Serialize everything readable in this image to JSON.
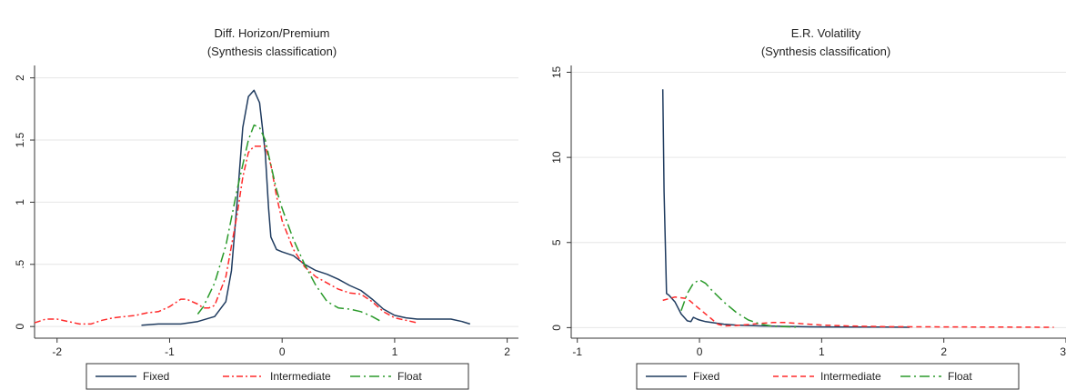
{
  "chart_data": [
    {
      "type": "line",
      "title": "Diff. Horizon/Premium",
      "subtitle": "(Synthesis classification)",
      "xlabel": "",
      "ylabel": "",
      "xlim": [
        -2.2,
        2.1
      ],
      "ylim": [
        -0.05,
        2.1
      ],
      "xticks": [
        -2,
        -1,
        0,
        1,
        2
      ],
      "xtick_labels": [
        "-2",
        "-1",
        "0",
        "1",
        "2"
      ],
      "yticks": [
        0,
        0.5,
        1,
        1.5,
        2
      ],
      "ytick_labels": [
        "0",
        ".5",
        "1",
        "1.5",
        "2"
      ],
      "grid": true,
      "legend_position": "bottom",
      "series": [
        {
          "name": "Fixed",
          "color": "#1f3b5f",
          "dash": "solid",
          "x": [
            -1.25,
            -1.1,
            -0.9,
            -0.75,
            -0.6,
            -0.5,
            -0.45,
            -0.4,
            -0.35,
            -0.3,
            -0.25,
            -0.2,
            -0.15,
            -0.12,
            -0.1,
            -0.05,
            0.0,
            0.1,
            0.2,
            0.3,
            0.4,
            0.5,
            0.6,
            0.7,
            0.8,
            0.9,
            1.0,
            1.1,
            1.2,
            1.3,
            1.4,
            1.5,
            1.6,
            1.67
          ],
          "y": [
            0.01,
            0.02,
            0.02,
            0.04,
            0.08,
            0.2,
            0.45,
            1.0,
            1.6,
            1.85,
            1.9,
            1.8,
            1.4,
            0.95,
            0.72,
            0.62,
            0.6,
            0.57,
            0.5,
            0.45,
            0.42,
            0.38,
            0.33,
            0.29,
            0.22,
            0.14,
            0.09,
            0.07,
            0.06,
            0.06,
            0.06,
            0.06,
            0.04,
            0.02
          ]
        },
        {
          "name": "Intermediate",
          "color": "#ff2a2a",
          "dash": "dash-dot",
          "x": [
            -2.2,
            -2.1,
            -2.0,
            -1.9,
            -1.8,
            -1.7,
            -1.6,
            -1.5,
            -1.4,
            -1.3,
            -1.2,
            -1.1,
            -1.0,
            -0.95,
            -0.9,
            -0.85,
            -0.8,
            -0.75,
            -0.7,
            -0.65,
            -0.6,
            -0.5,
            -0.4,
            -0.35,
            -0.3,
            -0.25,
            -0.2,
            -0.15,
            -0.1,
            -0.05,
            0.0,
            0.1,
            0.2,
            0.3,
            0.4,
            0.5,
            0.6,
            0.7,
            0.8,
            0.9,
            1.0,
            1.1,
            1.2
          ],
          "y": [
            0.03,
            0.06,
            0.06,
            0.04,
            0.02,
            0.02,
            0.05,
            0.07,
            0.08,
            0.09,
            0.11,
            0.12,
            0.16,
            0.19,
            0.22,
            0.22,
            0.2,
            0.18,
            0.15,
            0.15,
            0.17,
            0.4,
            0.9,
            1.2,
            1.4,
            1.45,
            1.45,
            1.45,
            1.3,
            1.05,
            0.85,
            0.62,
            0.48,
            0.4,
            0.35,
            0.3,
            0.27,
            0.26,
            0.2,
            0.12,
            0.07,
            0.05,
            0.03
          ]
        },
        {
          "name": "Float",
          "color": "#2a9a2a",
          "dash": "long-dash-dot",
          "x": [
            -0.75,
            -0.7,
            -0.6,
            -0.5,
            -0.4,
            -0.3,
            -0.25,
            -0.2,
            -0.15,
            -0.1,
            -0.05,
            0.0,
            0.1,
            0.2,
            0.3,
            0.4,
            0.5,
            0.6,
            0.7,
            0.8,
            0.88
          ],
          "y": [
            0.1,
            0.16,
            0.35,
            0.65,
            1.1,
            1.5,
            1.62,
            1.6,
            1.5,
            1.3,
            1.1,
            0.95,
            0.7,
            0.5,
            0.33,
            0.2,
            0.15,
            0.14,
            0.12,
            0.08,
            0.04
          ]
        }
      ]
    },
    {
      "type": "line",
      "title": "E.R. Volatility",
      "subtitle": "(Synthesis classification)",
      "xlabel": "",
      "ylabel": "",
      "xlim": [
        -1.05,
        3.0
      ],
      "ylim": [
        -0.3,
        15.4
      ],
      "xticks": [
        -1,
        0,
        1,
        2,
        3
      ],
      "xtick_labels": [
        "-1",
        "0",
        "1",
        "2",
        "3"
      ],
      "yticks": [
        0,
        5,
        10,
        15
      ],
      "ytick_labels": [
        "0",
        "5",
        "10",
        "15"
      ],
      "grid": true,
      "legend_position": "bottom",
      "series": [
        {
          "name": "Fixed",
          "color": "#1f3b5f",
          "dash": "solid",
          "x": [
            -0.3,
            -0.29,
            -0.27,
            -0.25,
            -0.2,
            -0.15,
            -0.1,
            -0.07,
            -0.05,
            -0.02,
            0.0,
            0.05,
            0.1,
            0.2,
            0.3,
            0.5,
            0.8,
            1.0,
            1.3,
            1.5,
            1.72
          ],
          "y": [
            14.0,
            8.0,
            2.0,
            1.9,
            1.5,
            0.8,
            0.4,
            0.35,
            0.6,
            0.5,
            0.45,
            0.35,
            0.3,
            0.2,
            0.15,
            0.1,
            0.06,
            0.04,
            0.03,
            0.03,
            0.02
          ]
        },
        {
          "name": "Intermediate",
          "color": "#ff2a2a",
          "dash": "dashed",
          "x": [
            -0.3,
            -0.2,
            -0.1,
            0.0,
            0.1,
            0.15,
            0.2,
            0.3,
            0.4,
            0.5,
            0.6,
            0.7,
            0.8,
            1.0,
            1.2,
            1.5,
            2.0,
            2.5,
            2.9
          ],
          "y": [
            1.6,
            1.8,
            1.7,
            1.1,
            0.5,
            0.2,
            0.1,
            0.12,
            0.18,
            0.25,
            0.3,
            0.3,
            0.25,
            0.15,
            0.1,
            0.06,
            0.04,
            0.03,
            0.02
          ]
        },
        {
          "name": "Float",
          "color": "#2a9a2a",
          "dash": "long-dash-dot",
          "x": [
            -0.15,
            -0.1,
            -0.05,
            0.0,
            0.05,
            0.1,
            0.2,
            0.3,
            0.4,
            0.5,
            0.6,
            0.8
          ],
          "y": [
            1.0,
            2.0,
            2.6,
            2.8,
            2.6,
            2.2,
            1.5,
            0.9,
            0.45,
            0.2,
            0.08,
            0.03
          ]
        }
      ]
    }
  ]
}
